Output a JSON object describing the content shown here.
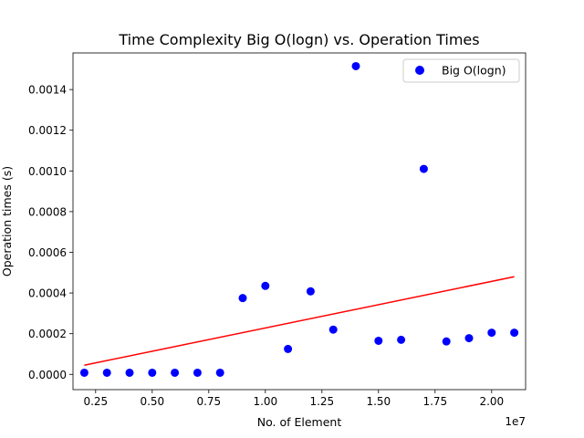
{
  "chart_data": {
    "type": "scatter",
    "title": "Time Complexity Big O(logn) vs. Operation Times",
    "xlabel": "No. of Element",
    "ylabel": "Operation times (s)",
    "x_offset_label": "1e7",
    "xlim": [
      1500000,
      21500000
    ],
    "ylim": [
      -7.5e-05,
      0.00158
    ],
    "xticks": [
      2500000,
      5000000,
      7500000,
      10000000,
      12500000,
      15000000,
      17500000,
      20000000
    ],
    "xtick_labels": [
      "0.25",
      "0.50",
      "0.75",
      "1.00",
      "1.25",
      "1.50",
      "1.75",
      "2.00"
    ],
    "yticks": [
      0,
      0.0002,
      0.0004,
      0.0006,
      0.0008,
      0.001,
      0.0012,
      0.0014
    ],
    "ytick_labels": [
      "0.0000",
      "0.0002",
      "0.0004",
      "0.0006",
      "0.0008",
      "0.0010",
      "0.0012",
      "0.0014"
    ],
    "legend_position": "top-right",
    "grid": false,
    "series": [
      {
        "name": "Big O(logn)",
        "type": "scatter",
        "color": "#0000ff",
        "x": [
          2000000,
          3000000,
          4000000,
          5000000,
          6000000,
          7000000,
          8000000,
          9000000,
          10000000,
          11000000,
          12000000,
          13000000,
          14000000,
          15000000,
          16000000,
          17000000,
          18000000,
          19000000,
          20000000,
          21000000
        ],
        "y": [
          8e-06,
          8e-06,
          8e-06,
          8e-06,
          8e-06,
          8e-06,
          8e-06,
          0.000375,
          0.000435,
          0.000125,
          0.000408,
          0.00022,
          0.001515,
          0.000165,
          0.00017,
          0.00101,
          0.000162,
          0.000178,
          0.000205,
          0.000205
        ]
      },
      {
        "type": "line",
        "color": "#ff0000",
        "x": [
          2000000,
          21000000
        ],
        "y": [
          4.5e-05,
          0.00048
        ]
      }
    ]
  }
}
